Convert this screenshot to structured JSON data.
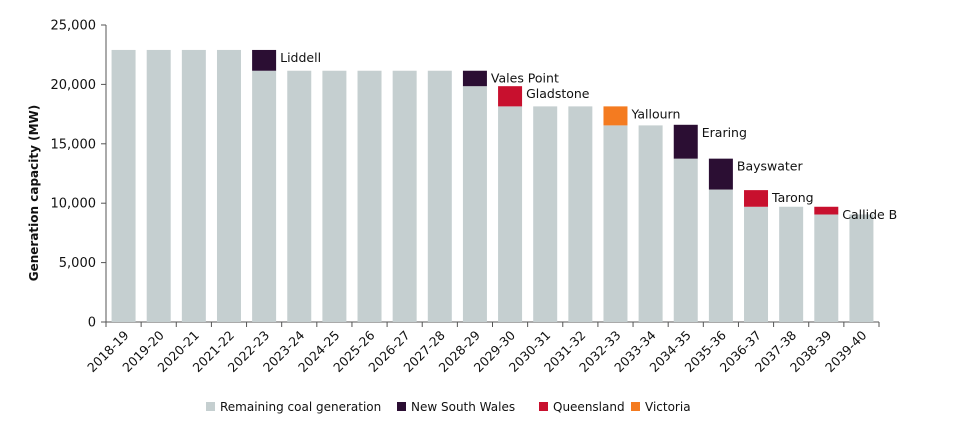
{
  "chart_data": {
    "type": "bar",
    "stacked": true,
    "ylabel": "Generation capacity (MW)",
    "xlabel": "",
    "ylim": [
      0,
      25000
    ],
    "yticks": [
      0,
      5000,
      10000,
      15000,
      20000,
      25000
    ],
    "ytick_labels": [
      "0",
      "5,000",
      "10,000",
      "15,000",
      "20,000",
      "25,000"
    ],
    "grid": false,
    "legend_position": "bottom",
    "categories": [
      "2018-19",
      "2019-20",
      "2020-21",
      "2021-22",
      "2022-23",
      "2023-24",
      "2024-25",
      "2025-26",
      "2026-27",
      "2027-28",
      "2028-29",
      "2029-30",
      "2030-31",
      "2031-32",
      "2032-33",
      "2033-34",
      "2034-35",
      "2035-36",
      "2036-37",
      "2037-38",
      "2038-39",
      "2039-40"
    ],
    "series": [
      {
        "name": "Remaining coal generation",
        "color": "#c5cfd0",
        "values": [
          22900,
          22900,
          22900,
          22900,
          21150,
          21150,
          21150,
          21150,
          21150,
          21150,
          19850,
          18150,
          18150,
          18150,
          16550,
          16550,
          13750,
          11150,
          9700,
          9700,
          9050,
          9050
        ]
      },
      {
        "name": "New South Wales",
        "color": "#2b0e33",
        "values": [
          0,
          0,
          0,
          0,
          1750,
          0,
          0,
          0,
          0,
          0,
          1300,
          0,
          0,
          0,
          0,
          0,
          2850,
          2600,
          0,
          0,
          0,
          0
        ]
      },
      {
        "name": "Queensland",
        "color": "#c8102e",
        "values": [
          0,
          0,
          0,
          0,
          0,
          0,
          0,
          0,
          0,
          0,
          0,
          1700,
          0,
          0,
          0,
          0,
          0,
          0,
          1400,
          0,
          650,
          0
        ]
      },
      {
        "name": "Victoria",
        "color": "#f47b20",
        "values": [
          0,
          0,
          0,
          0,
          0,
          0,
          0,
          0,
          0,
          0,
          0,
          0,
          0,
          0,
          1600,
          0,
          0,
          0,
          0,
          0,
          0,
          0
        ]
      }
    ],
    "annotations": [
      {
        "index": 4,
        "text": "Liddell"
      },
      {
        "index": 10,
        "text": "Vales Point"
      },
      {
        "index": 11,
        "text": "Gladstone"
      },
      {
        "index": 14,
        "text": "Yallourn"
      },
      {
        "index": 16,
        "text": "Eraring"
      },
      {
        "index": 17,
        "text": "Bayswater"
      },
      {
        "index": 18,
        "text": "Tarong"
      },
      {
        "index": 20,
        "text": "Callide B"
      }
    ]
  }
}
